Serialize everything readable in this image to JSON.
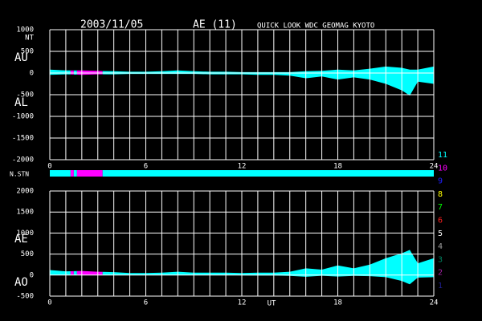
{
  "header": {
    "date": "2003/11/05",
    "index": "AE (11)",
    "source": "QUICK LOOK  WDC GEOMAG KYOTO"
  },
  "chart_data": [
    {
      "type": "range_area",
      "x": [
        0,
        1,
        2,
        3,
        4,
        5,
        6,
        7,
        8,
        9,
        10,
        11,
        12,
        13,
        14,
        15,
        16,
        17,
        18,
        19,
        20,
        21,
        22,
        22.5,
        23,
        24
      ],
      "series": [
        {
          "name": "AU",
          "values": [
            80,
            60,
            60,
            50,
            40,
            30,
            30,
            40,
            60,
            40,
            30,
            30,
            20,
            20,
            20,
            20,
            40,
            50,
            80,
            60,
            100,
            150,
            120,
            80,
            80,
            150
          ]
        },
        {
          "name": "AL",
          "values": [
            -40,
            -30,
            -40,
            -30,
            -30,
            -20,
            -20,
            -20,
            -20,
            -20,
            -30,
            -30,
            -30,
            -40,
            -40,
            -60,
            -120,
            -80,
            -150,
            -100,
            -150,
            -250,
            -400,
            -520,
            -200,
            -250
          ]
        }
      ],
      "xlim": [
        0,
        24
      ],
      "xticks": [
        0,
        6,
        12,
        18,
        24
      ],
      "xgrid": [
        0,
        1,
        2,
        3,
        4,
        5,
        6,
        7,
        8,
        9,
        10,
        11,
        12,
        13,
        14,
        15,
        16,
        17,
        18,
        19,
        20,
        21,
        22,
        23,
        24
      ],
      "ylim": [
        -2000,
        1000
      ],
      "yticks": [
        1000,
        500,
        0,
        -500,
        -1000,
        -1500,
        -2000
      ],
      "y_unit": "NT",
      "grid": true
    },
    {
      "type": "range_area",
      "x": [
        0,
        1,
        2,
        3,
        4,
        5,
        6,
        7,
        8,
        9,
        10,
        11,
        12,
        13,
        14,
        15,
        16,
        17,
        18,
        19,
        20,
        21,
        22,
        22.5,
        23,
        24
      ],
      "series": [
        {
          "name": "AE",
          "values": [
            120,
            90,
            100,
            80,
            70,
            50,
            50,
            60,
            80,
            60,
            60,
            60,
            50,
            60,
            60,
            80,
            160,
            130,
            230,
            160,
            250,
            400,
            520,
            600,
            280,
            400
          ]
        },
        {
          "name": "AO",
          "values": [
            20,
            15,
            10,
            10,
            5,
            5,
            5,
            10,
            20,
            10,
            0,
            0,
            -5,
            -10,
            -10,
            -20,
            -40,
            -15,
            -35,
            -20,
            -25,
            -50,
            -140,
            -220,
            -60,
            -50
          ]
        }
      ],
      "xlim": [
        0,
        24
      ],
      "xticks": [
        0,
        6,
        12,
        18,
        24
      ],
      "xgrid": [
        0,
        1,
        2,
        3,
        4,
        5,
        6,
        7,
        8,
        9,
        10,
        11,
        12,
        13,
        14,
        15,
        16,
        17,
        18,
        19,
        20,
        21,
        22,
        23,
        24
      ],
      "xlabel": "UT",
      "ylim": [
        -500,
        2000
      ],
      "yticks": [
        2000,
        1500,
        1000,
        500,
        0,
        -500
      ],
      "grid": true
    }
  ],
  "station_bar": {
    "label": "N.STN",
    "segments": [
      {
        "from": 0,
        "to": 1.3,
        "count": 11
      },
      {
        "from": 1.3,
        "to": 1.5,
        "count": 10
      },
      {
        "from": 1.5,
        "to": 1.7,
        "count": 11
      },
      {
        "from": 1.7,
        "to": 3.3,
        "count": 10
      },
      {
        "from": 3.3,
        "to": 24,
        "count": 11
      }
    ],
    "legend": [
      {
        "count": 11,
        "color": "#00ffff"
      },
      {
        "count": 10,
        "color": "#ff00ff"
      },
      {
        "count": 9,
        "color": "#2020ff"
      },
      {
        "count": 8,
        "color": "#ffff00"
      },
      {
        "count": 7,
        "color": "#00ff00"
      },
      {
        "count": 6,
        "color": "#ff2020"
      },
      {
        "count": 5,
        "color": "#ffffff"
      },
      {
        "count": 4,
        "color": "#a0a0a0"
      },
      {
        "count": 3,
        "color": "#008060"
      },
      {
        "count": 2,
        "color": "#a020a0"
      },
      {
        "count": 1,
        "color": "#202090"
      }
    ]
  }
}
